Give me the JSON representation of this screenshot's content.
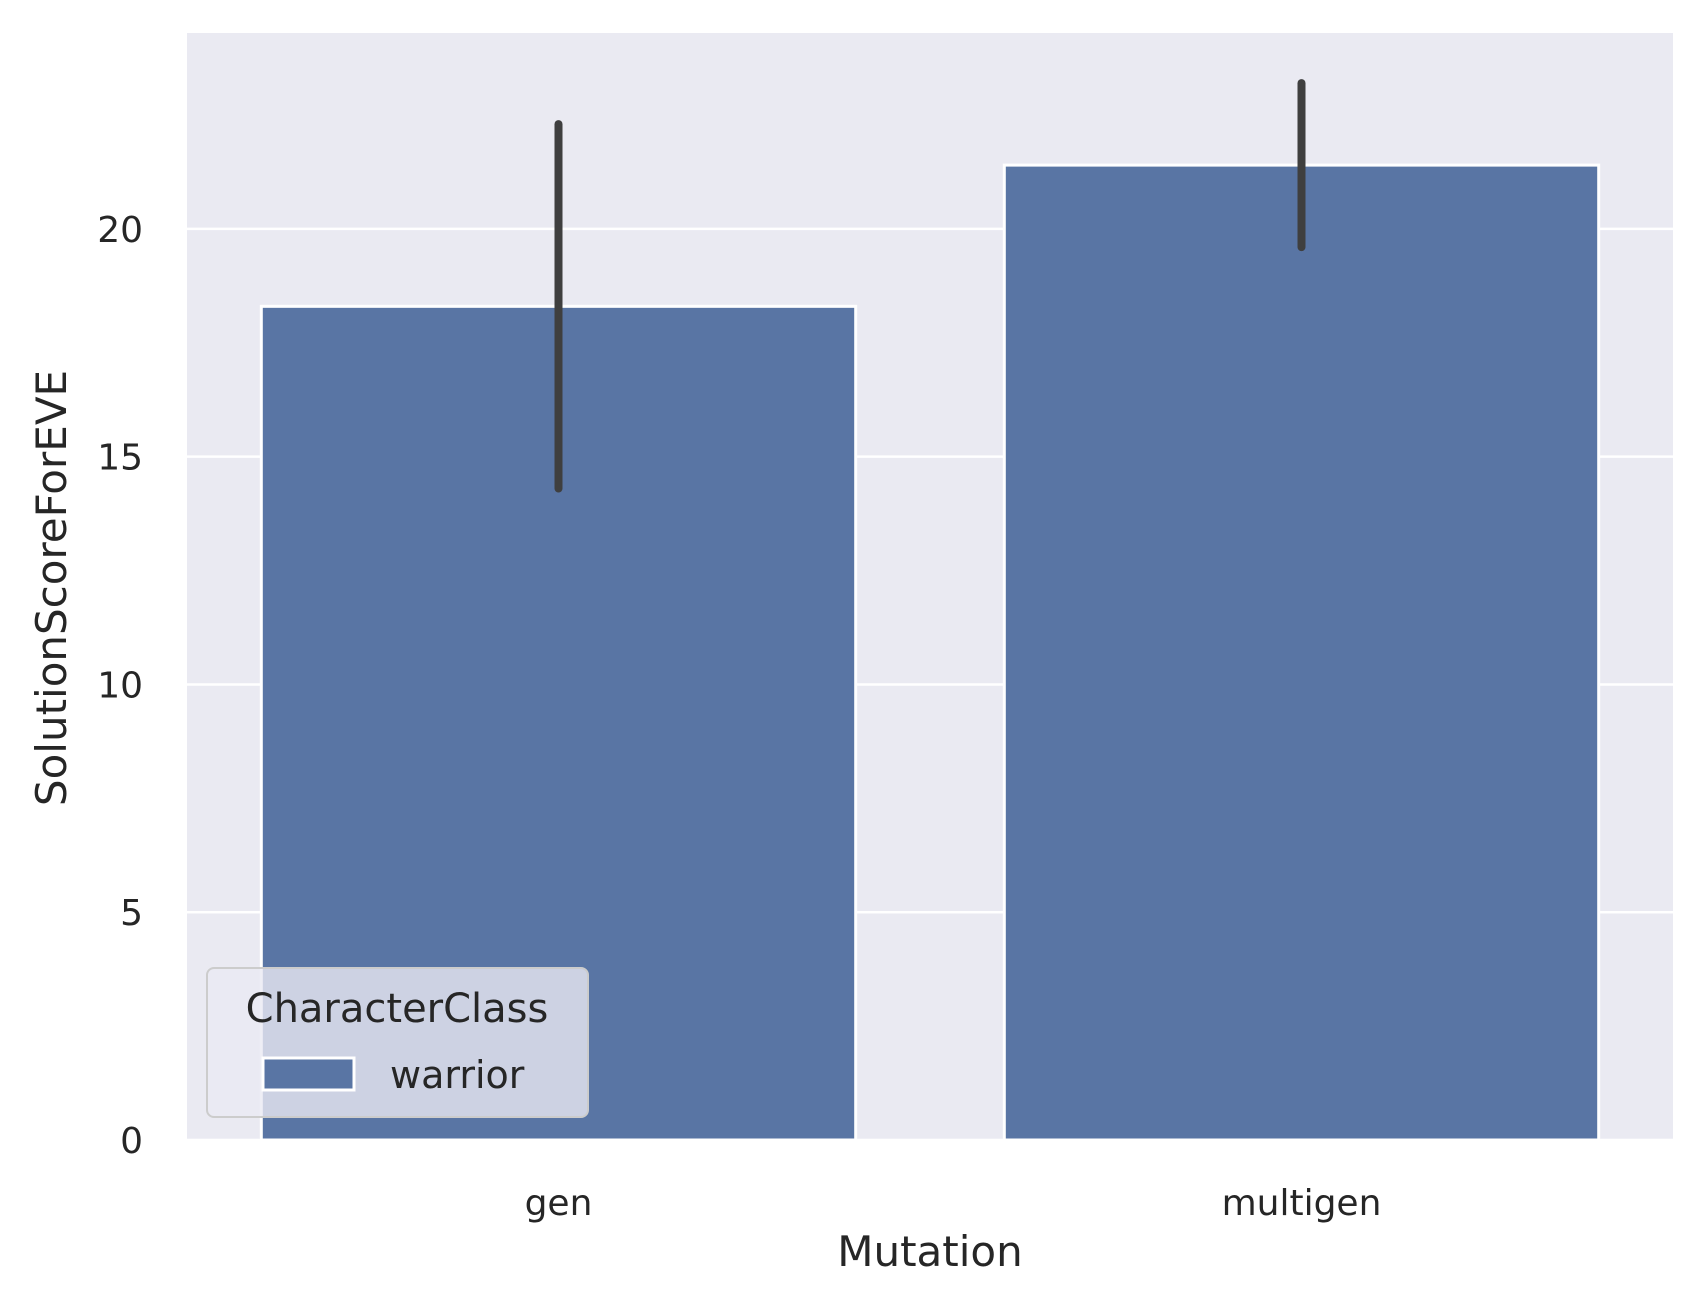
{
  "chart_data": {
    "type": "bar",
    "title": "",
    "xlabel": "Mutation",
    "ylabel": "SolutionScoreForEVE",
    "categories": [
      "gen",
      "multigen"
    ],
    "series": [
      {
        "name": "warrior",
        "color": "#5975a4",
        "values": [
          18.3,
          21.4
        ],
        "ci_low": [
          14.3,
          19.6
        ],
        "ci_high": [
          22.3,
          23.2
        ]
      }
    ],
    "ylim": [
      0,
      24.3
    ],
    "yticks": [
      0,
      5,
      10,
      15,
      20
    ],
    "ytick_labels": [
      "0",
      "5",
      "10",
      "15",
      "20"
    ],
    "grid": true,
    "legend": {
      "title": "CharacterClass",
      "entries": [
        "warrior"
      ],
      "placement": "lower-left"
    },
    "colors": {
      "plot_background": "#eaeaf2",
      "grid": "#ffffff",
      "errorbar": "#3f3f3f",
      "text": "#262626"
    }
  }
}
